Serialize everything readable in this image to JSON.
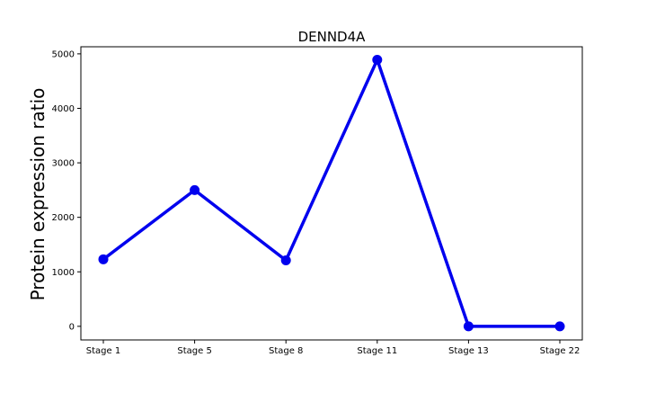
{
  "chart_data": {
    "type": "line",
    "title": "DENND4A",
    "xlabel": "",
    "ylabel": "Protein expression ratio",
    "categories": [
      "Stage 1",
      "Stage 5",
      "Stage 8",
      "Stage 11",
      "Stage 13",
      "Stage 22"
    ],
    "series": [
      {
        "values": [
          1230,
          2500,
          1210,
          4890,
          0,
          0
        ],
        "color": "#0000ee"
      }
    ],
    "yticks": [
      0,
      1000,
      2000,
      3000,
      4000,
      5000
    ],
    "ytick_labels": [
      "0",
      "1000",
      "2000",
      "3000",
      "4000",
      "5000"
    ],
    "ylim": [
      -250,
      5130
    ],
    "grid": false,
    "legend": "none"
  }
}
